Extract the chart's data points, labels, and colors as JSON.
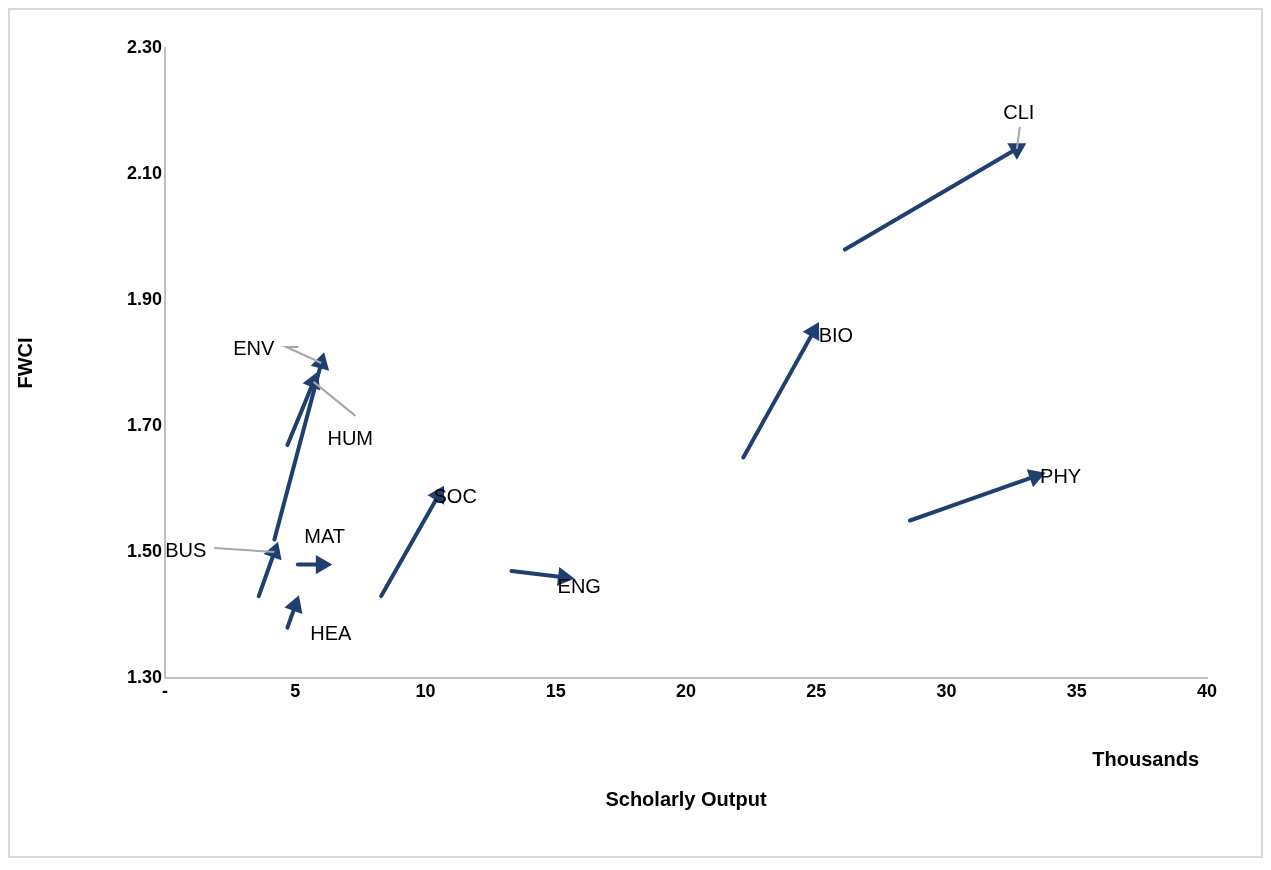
{
  "chart_data": {
    "type": "line",
    "xlabel": "Scholarly Output",
    "ylabel": "FWCI",
    "annotations": [
      "Thousands"
    ],
    "xlim": [
      0,
      40
    ],
    "xticks": [
      {
        "value": 0,
        "label": "-"
      },
      5,
      10,
      15,
      20,
      25,
      30,
      35,
      40
    ],
    "ylim": [
      1.3,
      2.3
    ],
    "yticks": [
      {
        "value": 1.3,
        "label": "1.30"
      },
      {
        "value": 1.5,
        "label": "1.50"
      },
      {
        "value": 1.7,
        "label": "1.70"
      },
      {
        "value": 1.9,
        "label": "1.90"
      },
      {
        "value": 2.1,
        "label": "2.10"
      },
      {
        "value": 2.3,
        "label": "2.30"
      }
    ],
    "grid": false,
    "legend": false,
    "marker": "triangle",
    "series": [
      {
        "name": "CLI",
        "color": "#1f3f6e",
        "x": [
          26.1,
          32.7
        ],
        "values": [
          1.98,
          2.14
        ]
      },
      {
        "name": "BIO",
        "color": "#1f3f6e",
        "x": [
          22.2,
          24.9
        ],
        "values": [
          1.65,
          1.85
        ]
      },
      {
        "name": "PHY",
        "color": "#1f3f6e",
        "x": [
          28.6,
          33.4
        ],
        "values": [
          1.55,
          1.62
        ]
      },
      {
        "name": "ENG",
        "color": "#1f3f6e",
        "x": [
          13.3,
          15.3
        ],
        "values": [
          1.47,
          1.46
        ]
      },
      {
        "name": "SOC",
        "color": "#1f3f6e",
        "x": [
          8.3,
          10.5
        ],
        "values": [
          1.43,
          1.59
        ]
      },
      {
        "name": "MAT",
        "color": "#1f3f6e",
        "x": [
          5.1,
          6.0
        ],
        "values": [
          1.48,
          1.48
        ]
      },
      {
        "name": "HEA",
        "color": "#1f3f6e",
        "x": [
          4.7,
          5.0
        ],
        "values": [
          1.38,
          1.415
        ]
      },
      {
        "name": "BUS",
        "color": "#1f3f6e",
        "x": [
          3.6,
          4.2
        ],
        "values": [
          1.43,
          1.5
        ]
      },
      {
        "name": "HUM",
        "color": "#1f3f6e",
        "x": [
          4.7,
          5.7
        ],
        "values": [
          1.67,
          1.77
        ]
      },
      {
        "name": "ENV",
        "color": "#1f3f6e",
        "x": [
          4.2,
          6.0
        ],
        "values": [
          1.52,
          1.8
        ]
      }
    ]
  }
}
